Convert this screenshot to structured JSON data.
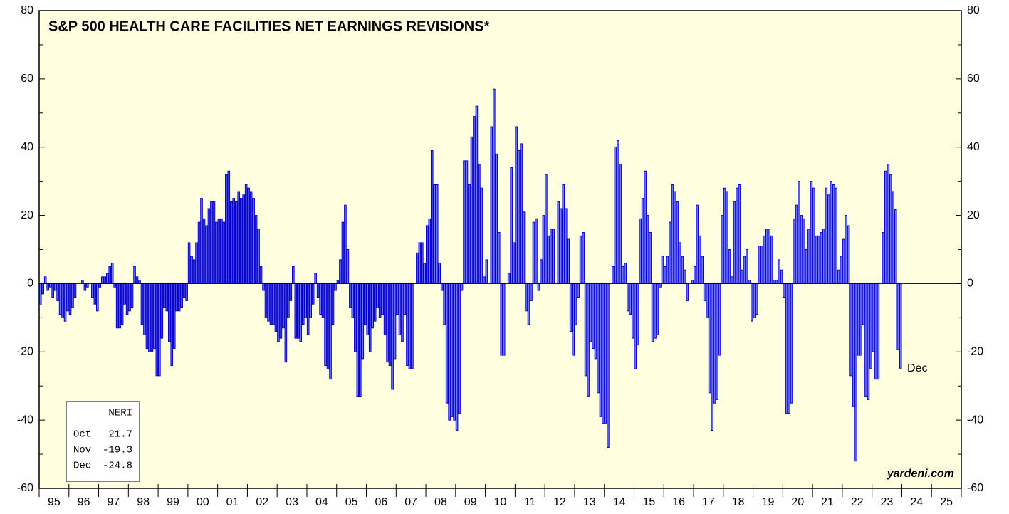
{
  "chart_data": {
    "type": "bar",
    "title": "S&P 500 HEALTH CARE FACILITIES NET EARNINGS REVISIONS*",
    "source": "yardeni.com",
    "annotation": "Dec",
    "x_labels": [
      "95",
      "96",
      "97",
      "98",
      "99",
      "00",
      "01",
      "02",
      "03",
      "04",
      "05",
      "06",
      "07",
      "08",
      "09",
      "10",
      "11",
      "12",
      "13",
      "14",
      "15",
      "16",
      "17",
      "18",
      "19",
      "20",
      "21",
      "22",
      "23",
      "24",
      "25"
    ],
    "color": "#7272ff",
    "edge_color": "#0000c8",
    "background": "#ffffe0",
    "ylim": [
      -60,
      80
    ],
    "yticks": [
      -60,
      -40,
      -20,
      0,
      20,
      40,
      60,
      80
    ],
    "yticks_minor": [
      -50,
      -30,
      -10,
      10,
      30,
      50,
      70
    ],
    "values": [
      -6,
      -3,
      2,
      -2,
      -1,
      -4,
      -2,
      -5,
      -9,
      -10,
      -11,
      -8,
      -9,
      -7,
      -4,
      0,
      0,
      1,
      -2,
      -1,
      0,
      -4,
      -6,
      -8,
      -1,
      2,
      2,
      3,
      5,
      6,
      -1,
      -13,
      -13,
      -12,
      -6,
      -9,
      -8,
      -7,
      5,
      2,
      1,
      -12,
      -15,
      -19,
      -20,
      -20,
      -19,
      -27,
      -27,
      -16,
      -7,
      -8,
      -17,
      -24,
      -19,
      -8,
      -8,
      -7,
      -4,
      -5,
      12,
      8,
      7,
      12,
      18,
      25,
      19,
      17,
      22,
      24,
      24,
      18,
      19,
      19,
      18,
      32,
      33,
      24,
      25,
      24,
      27,
      25,
      26,
      29,
      28,
      27,
      25,
      20,
      16,
      5,
      -2,
      -10,
      -11,
      -12,
      -12,
      -14,
      -17,
      -16,
      -13,
      -23,
      -10,
      -5,
      5,
      -16,
      -16,
      -17,
      -12,
      -10,
      -15,
      -10,
      -6,
      3,
      -4,
      -9,
      -10,
      -24,
      -25,
      -28,
      -12,
      -2,
      1,
      7,
      18,
      23,
      10,
      -7,
      -10,
      -20,
      -33,
      -33,
      -22,
      -12,
      -15,
      -20,
      -13,
      -11,
      -7,
      -10,
      -9,
      -15,
      -23,
      -24,
      -31,
      -22,
      -9,
      -15,
      -17,
      -9,
      -24,
      -25,
      -25,
      0,
      9,
      12,
      12,
      6,
      17,
      19,
      39,
      29,
      29,
      6,
      -2,
      -12,
      -35,
      -40,
      -39,
      -40,
      -43,
      -38,
      -2,
      36,
      36,
      29,
      43,
      49,
      52,
      35,
      28,
      2,
      7,
      0,
      46,
      57,
      38,
      15,
      -21,
      -21,
      0,
      3,
      34,
      12,
      46,
      39,
      41,
      21,
      -8,
      -12,
      -5,
      18,
      19,
      -2,
      7,
      20,
      32,
      14,
      16,
      16,
      0,
      24,
      22,
      29,
      22,
      13,
      -14,
      -21,
      -12,
      -4,
      14,
      15,
      -27,
      -33,
      -17,
      -19,
      -22,
      -32,
      -39,
      -41,
      -41,
      -48,
      0,
      5,
      40,
      42,
      35,
      5,
      6,
      -8,
      -9,
      -16,
      -25,
      -18,
      19,
      25,
      33,
      20,
      15,
      -17,
      -16,
      -15,
      -1,
      8,
      5,
      8,
      18,
      29,
      27,
      24,
      12,
      8,
      4,
      -5,
      0,
      1,
      5,
      23,
      14,
      8,
      -5,
      -10,
      -32,
      -43,
      -35,
      -34,
      -21,
      20,
      28,
      27,
      10,
      2,
      24,
      28,
      29,
      4,
      8,
      10,
      1,
      -11,
      -10,
      -9,
      11,
      11,
      14,
      16,
      16,
      14,
      1,
      1,
      7,
      4,
      -4,
      -38,
      -38,
      -35,
      19,
      23,
      30,
      20,
      19,
      10,
      16,
      30,
      28,
      14,
      14,
      15,
      16,
      28,
      26,
      30,
      29,
      28,
      4,
      8,
      13,
      20,
      17,
      -27,
      -36,
      -52,
      -21,
      -21,
      -12,
      -33,
      -34,
      -25,
      -20,
      -28,
      -28,
      0,
      15,
      33,
      35,
      32,
      27,
      21.7,
      -19.3,
      -24.8
    ],
    "legend_box": {
      "title": "NERI",
      "rows": [
        [
          "Oct",
          "21.7"
        ],
        [
          "Nov",
          "-19.3"
        ],
        [
          "Dec",
          "-24.8"
        ]
      ]
    }
  }
}
